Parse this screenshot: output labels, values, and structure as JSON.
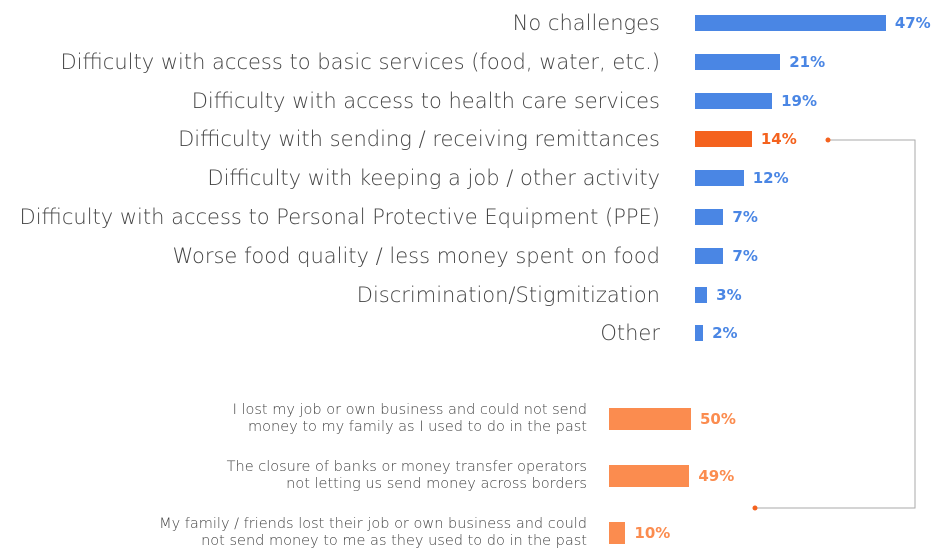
{
  "chart_data": [
    {
      "type": "bar",
      "orientation": "horizontal",
      "categories": [
        "No challenges",
        "Difficulty with access to basic services (food, water, etc.)",
        "Difficulty with access to health care services",
        "Difficulty with sending / receiving remittances",
        "Difficulty with keeping a job / other activity",
        "Difficulty with access to Personal Protective Equipment (PPE)",
        "Worse food quality / less money spent on food",
        "Discrimination/Stigmitization",
        "Other"
      ],
      "values": [
        47,
        21,
        19,
        14,
        12,
        7,
        7,
        3,
        2
      ],
      "value_labels": [
        "47%",
        "21%",
        "19%",
        "14%",
        "12%",
        "7%",
        "7%",
        "3%",
        "2%"
      ],
      "colors": [
        "#4a86e4",
        "#4a86e4",
        "#4a86e4",
        "#f4621e",
        "#4a86e4",
        "#4a86e4",
        "#4a86e4",
        "#4a86e4",
        "#4a86e4"
      ]
    },
    {
      "type": "bar",
      "orientation": "horizontal",
      "categories": [
        "I lost my job or own business and could not send\nmoney to my family as I used to do in the past",
        "The closure of banks or money transfer operators\nnot letting us send money across borders",
        "My family / friends lost their job or own business and could\nnot send money to me as they used to do in the past"
      ],
      "values": [
        50,
        49,
        10
      ],
      "value_labels": [
        "50%",
        "49%",
        "10%"
      ],
      "color": "#fb8c4f"
    }
  ]
}
